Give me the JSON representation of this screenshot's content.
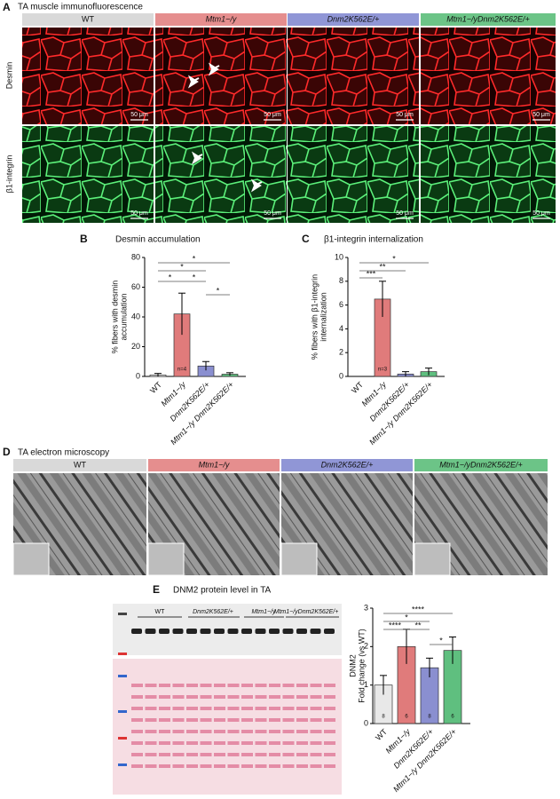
{
  "panels": {
    "A": {
      "letter": "A",
      "title": "TA muscle immunofluorescence",
      "columns": [
        "WT",
        "Mtm1−/y",
        "Dnm2K562E/+",
        "Mtm1−/yDnm2K562E/+"
      ],
      "rows": [
        "Desmin",
        "β1-integrin"
      ],
      "scale_bar": "50 μm"
    },
    "D": {
      "letter": "D",
      "title": "TA electron microscopy",
      "columns": [
        "WT",
        "Mtm1−/y",
        "Dnm2K562E/+",
        "Mtm1−/yDnm2K562E/+"
      ]
    },
    "E_blot": {
      "lanes": [
        "WT",
        "Dnm2K562E/+",
        "Mtm1−/y",
        "Mtm1−/yDnm2K562E/+"
      ]
    }
  },
  "chart_data": [
    {
      "type": "bar",
      "panel_label": "B",
      "title": "Desmin accumulation",
      "y_label": [
        "% fibers with desmin",
        "accumulation"
      ],
      "categories": [
        "WT",
        "Mtm1−/y",
        "Dnm2K562E/+",
        "Mtm1−/y Dnm2K562E/+"
      ],
      "values": [
        1,
        42,
        7,
        1.5
      ],
      "errors": [
        1,
        14,
        3,
        1
      ],
      "colors": [
        "#f2f2f2",
        "#e07b7b",
        "#8a8fd0",
        "#5fbf7f"
      ],
      "n_labels": [
        null,
        "n=4",
        null,
        null
      ],
      "significance": [
        "*",
        "*",
        "*",
        "*",
        "*"
      ],
      "ylim": [
        0,
        80
      ],
      "yticks": [
        0,
        20,
        40,
        60,
        80
      ]
    },
    {
      "type": "bar",
      "panel_label": "C",
      "title": "β1-integrin internalization",
      "y_label": [
        "% fibers with β1-integrin",
        "internalization"
      ],
      "categories": [
        "WT",
        "Mtm1−/y",
        "Dnm2K562E/+",
        "Mtm1−/y Dnm2K562E/+"
      ],
      "values": [
        0,
        6.5,
        0.2,
        0.4
      ],
      "errors": [
        0,
        1.5,
        0.2,
        0.3
      ],
      "colors": [
        "#f2f2f2",
        "#e07b7b",
        "#8a8fd0",
        "#5fbf7f"
      ],
      "n_labels": [
        null,
        "n=3",
        null,
        null
      ],
      "significance": [
        "*",
        "**",
        "***"
      ],
      "ylim": [
        0,
        10
      ],
      "yticks": [
        0,
        2,
        4,
        6,
        8,
        10
      ]
    },
    {
      "type": "bar",
      "panel_label": "E",
      "title": "DNM2 protein level in TA",
      "y_label": [
        "DNM2",
        "Fold change (vs WT)"
      ],
      "categories": [
        "WT",
        "Mtm1−/y",
        "Dnm2K562E/+",
        "Mtm1−/y Dnm2K562E/+"
      ],
      "values": [
        1.0,
        2.0,
        1.45,
        1.9
      ],
      "errors": [
        0.25,
        0.45,
        0.25,
        0.35
      ],
      "colors": [
        "#e8e8e8",
        "#e07b7b",
        "#8a8fd0",
        "#5fbf7f"
      ],
      "n_labels": [
        "8",
        "6",
        "8",
        "6"
      ],
      "significance": [
        "****",
        "*",
        "****",
        "**",
        "*"
      ],
      "ylim": [
        0,
        3
      ],
      "yticks": [
        0,
        1,
        2,
        3
      ]
    }
  ]
}
